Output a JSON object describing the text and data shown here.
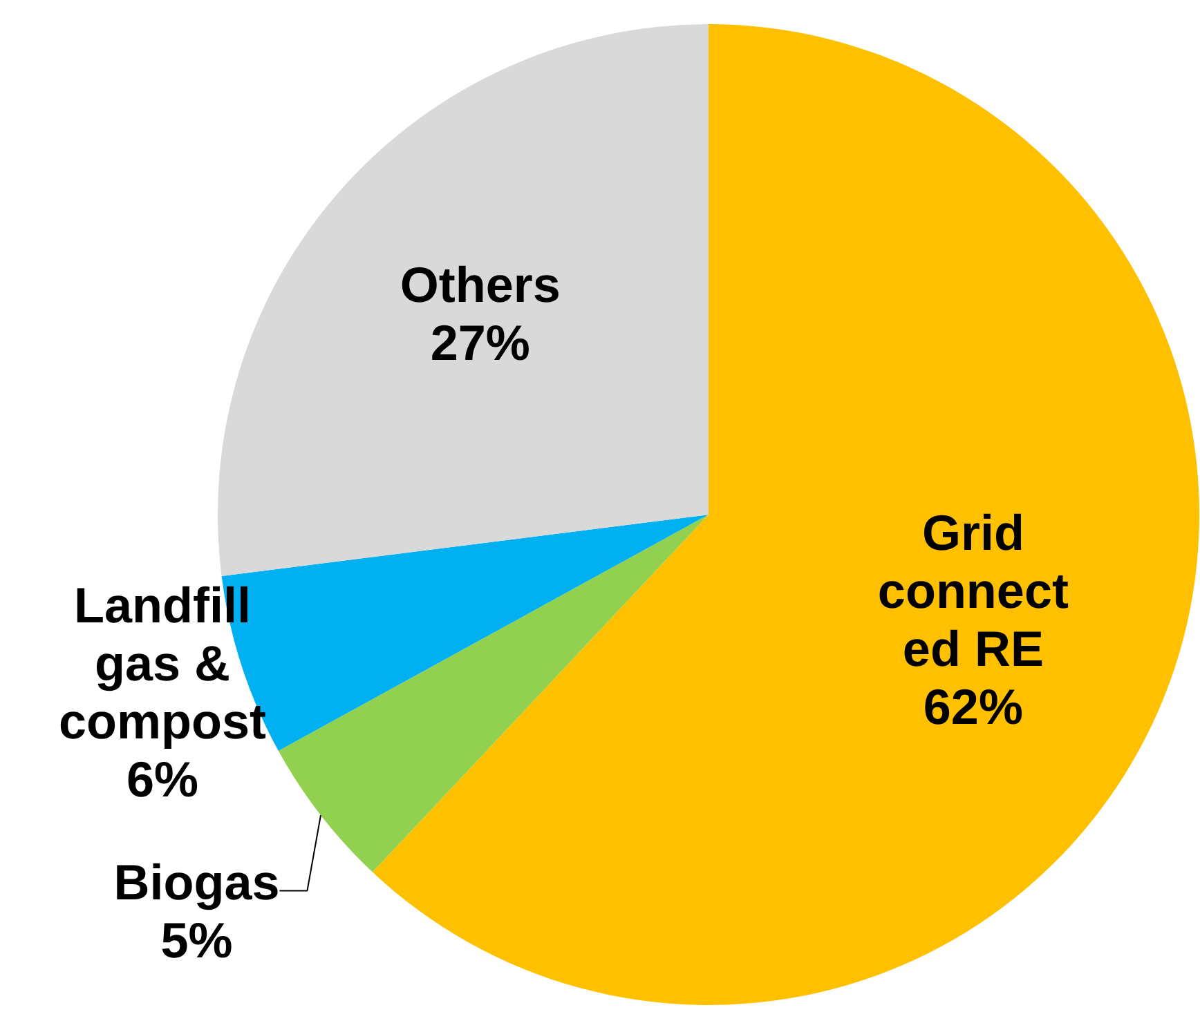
{
  "chart_data": {
    "type": "pie",
    "categories": [
      "Grid connected RE",
      "Biogas",
      "Landfill gas & compost",
      "Others"
    ],
    "values": [
      62,
      5,
      6,
      27
    ],
    "value_labels": [
      "62%",
      "5%",
      "6%",
      "27%"
    ],
    "colors": [
      "#ffc000",
      "#92d050",
      "#00b0f0",
      "#d9d9d9"
    ],
    "legend": false
  }
}
